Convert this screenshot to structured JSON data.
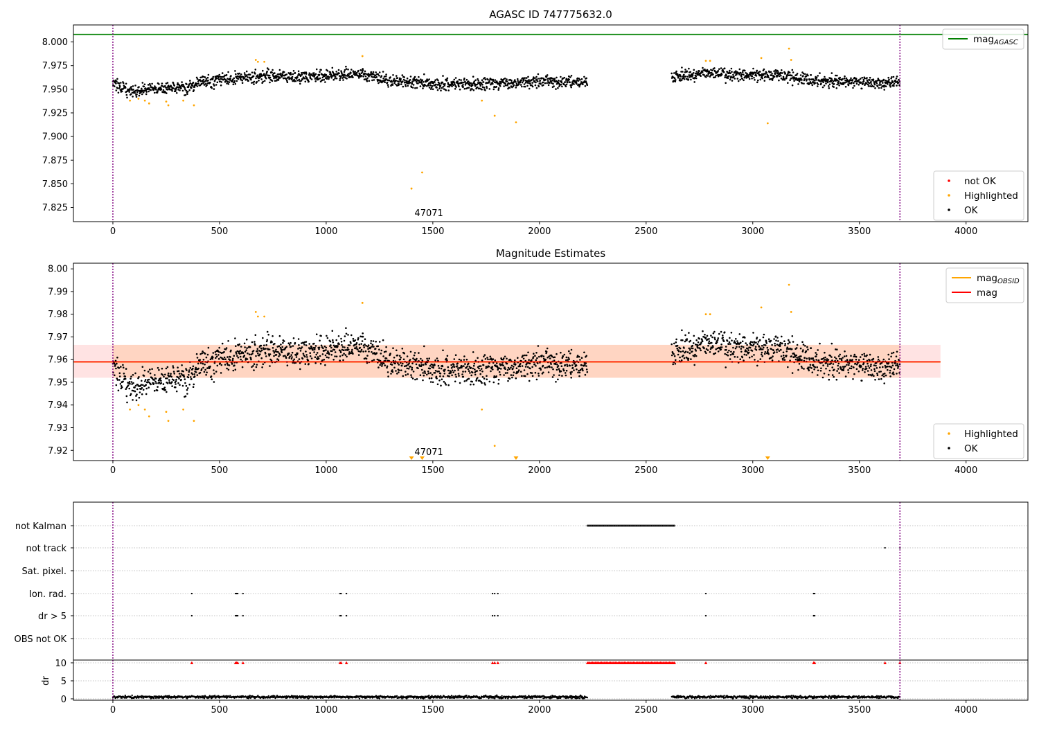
{
  "chart_data": [
    {
      "type": "scatter",
      "title": "AGASC ID 747775632.0",
      "xlim": [
        -185,
        4290
      ],
      "ylim": [
        7.81,
        8.018
      ],
      "xticks": [
        0,
        500,
        1000,
        1500,
        2000,
        2500,
        3000,
        3500,
        4000
      ],
      "yticks": [
        7.825,
        7.85,
        7.875,
        7.9,
        7.925,
        7.95,
        7.975,
        8.0
      ],
      "ytick_labels": [
        "7.825",
        "7.850",
        "7.875",
        "7.900",
        "7.925",
        "7.950",
        "7.975",
        "8.000"
      ],
      "lines": [
        {
          "name": "mag_AGASC",
          "y": 8.008,
          "color": "#008000"
        }
      ],
      "obsid_boundaries": [
        0,
        3690
      ],
      "obsid_label": {
        "text": "47071",
        "x": 1845
      },
      "segments": [
        {
          "x_start": 0,
          "x_end": 2225,
          "base": [
            [
              0,
              7.955
            ],
            [
              100,
              7.947
            ],
            [
              200,
              7.951
            ],
            [
              380,
              7.953
            ],
            [
              400,
              7.958
            ],
            [
              680,
              7.964
            ],
            [
              900,
              7.963
            ],
            [
              1160,
              7.966
            ],
            [
              1260,
              7.96
            ],
            [
              1500,
              7.956
            ],
            [
              1700,
              7.955
            ],
            [
              2000,
              7.958
            ],
            [
              2225,
              7.958
            ]
          ],
          "noise": 0.0045
        },
        {
          "x_start": 2620,
          "x_end": 3690,
          "base": [
            [
              2620,
              7.963
            ],
            [
              2800,
              7.966
            ],
            [
              3000,
              7.965
            ],
            [
              3150,
              7.965
            ],
            [
              3250,
              7.96
            ],
            [
              3500,
              7.957
            ],
            [
              3690,
              7.957
            ]
          ],
          "noise": 0.0045
        }
      ],
      "highlighted": [
        [
          80,
          7.938
        ],
        [
          120,
          7.94
        ],
        [
          150,
          7.938
        ],
        [
          170,
          7.935
        ],
        [
          250,
          7.937
        ],
        [
          260,
          7.933
        ],
        [
          330,
          7.938
        ],
        [
          380,
          7.933
        ],
        [
          670,
          7.981
        ],
        [
          680,
          7.979
        ],
        [
          710,
          7.979
        ],
        [
          1170,
          7.985
        ],
        [
          1400,
          7.845
        ],
        [
          1450,
          7.862
        ],
        [
          1730,
          7.938
        ],
        [
          1790,
          7.922
        ],
        [
          1890,
          7.915
        ],
        [
          2780,
          7.98
        ],
        [
          2800,
          7.98
        ],
        [
          3040,
          7.983
        ],
        [
          3070,
          7.914
        ],
        [
          3170,
          7.993
        ],
        [
          3180,
          7.981
        ]
      ],
      "legends": [
        {
          "placement": "top-right",
          "entries": [
            {
              "label": "mag",
              "sub": "AGASC",
              "marker": "line",
              "color": "#008000"
            }
          ]
        },
        {
          "placement": "bottom-right",
          "entries": [
            {
              "label": "not OK",
              "marker": "dot",
              "color": "#ff0000"
            },
            {
              "label": "Highlighted",
              "marker": "dot",
              "color": "#ffa500"
            },
            {
              "label": "OK",
              "marker": "dot",
              "color": "#000000"
            }
          ]
        }
      ]
    },
    {
      "type": "scatter",
      "title": "Magnitude Estimates",
      "xlim": [
        -185,
        4290
      ],
      "ylim": [
        7.9155,
        8.0025
      ],
      "xticks": [
        0,
        500,
        1000,
        1500,
        2000,
        2500,
        3000,
        3500,
        4000
      ],
      "yticks": [
        7.92,
        7.93,
        7.94,
        7.95,
        7.96,
        7.97,
        7.98,
        7.99,
        8.0
      ],
      "ytick_labels": [
        "7.92",
        "7.93",
        "7.94",
        "7.95",
        "7.96",
        "7.97",
        "7.98",
        "7.99",
        "8.00"
      ],
      "mag": 7.959,
      "band": [
        7.952,
        7.9665
      ],
      "band_x": [
        -185,
        3880
      ],
      "obsid_band_x": [
        0,
        3690
      ],
      "obsid_boundaries": [
        0,
        3690
      ],
      "obsid_label": {
        "text": "47071",
        "x": 1845
      },
      "highlighted": [
        [
          80,
          7.938
        ],
        [
          120,
          7.94
        ],
        [
          150,
          7.938
        ],
        [
          170,
          7.935
        ],
        [
          250,
          7.937
        ],
        [
          260,
          7.933
        ],
        [
          330,
          7.938
        ],
        [
          380,
          7.933
        ],
        [
          670,
          7.981
        ],
        [
          680,
          7.979
        ],
        [
          710,
          7.979
        ],
        [
          1170,
          7.985
        ],
        [
          1730,
          7.938
        ],
        [
          1790,
          7.922
        ],
        [
          2780,
          7.98
        ],
        [
          2800,
          7.98
        ],
        [
          3040,
          7.983
        ],
        [
          3170,
          7.993
        ],
        [
          3180,
          7.981
        ]
      ],
      "below_range": [
        1400,
        1450,
        1890,
        3070
      ],
      "legends": [
        {
          "placement": "top-right",
          "entries": [
            {
              "label": "mag",
              "sub": "OBSID",
              "marker": "line",
              "color": "#ffa500"
            },
            {
              "label": "mag",
              "marker": "line",
              "color": "#ff0000"
            }
          ]
        },
        {
          "placement": "bottom-right",
          "entries": [
            {
              "label": "Highlighted",
              "marker": "dot",
              "color": "#ffa500"
            },
            {
              "label": "OK",
              "marker": "dot",
              "color": "#000000"
            }
          ]
        }
      ]
    },
    {
      "type": "scatter",
      "xlim": [
        -185,
        4290
      ],
      "xticks": [
        0,
        500,
        1000,
        1500,
        2000,
        2500,
        3000,
        3500,
        4000
      ],
      "flag_rows": [
        "not Kalman",
        "not track",
        "Sat. pixel.",
        "Ion. rad.",
        "dr > 5",
        "OBS not OK"
      ],
      "flags": {
        "not Kalman": [
          [
            2225,
            2635
          ]
        ],
        "not track": [
          3620,
          3690
        ],
        "Sat. pixel.": [],
        "Ion. rad.": [
          370,
          575,
          580,
          585,
          610,
          1065,
          1070,
          1095,
          1780,
          1790,
          1805,
          2780,
          3285,
          3290
        ],
        "dr > 5": [
          370,
          575,
          580,
          585,
          610,
          1065,
          1070,
          1095,
          1780,
          1790,
          1805,
          2780,
          3285,
          3290
        ],
        "OBS not OK": []
      },
      "dr_ylim": [
        0,
        10
      ],
      "dr_yticks": [
        0,
        5,
        10
      ],
      "dr_label": "dr",
      "dr_clipped_x": [
        370,
        575,
        580,
        585,
        610,
        1065,
        1070,
        1095,
        1780,
        1790,
        1805,
        [
          2225,
          2635
        ],
        2780,
        3285,
        3290,
        3620,
        3690
      ],
      "obsid_boundaries": [
        0,
        3690
      ]
    }
  ]
}
